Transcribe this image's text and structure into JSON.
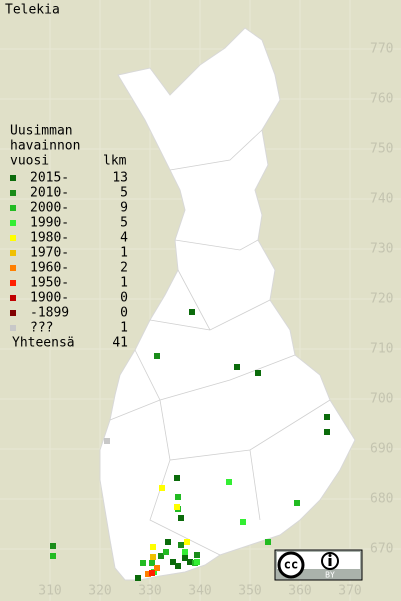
{
  "title": "Telekia",
  "legend": {
    "heading": [
      "Uusimman",
      "havainnon",
      "vuosi"
    ],
    "count_heading": "lkm",
    "items": [
      {
        "label": "2015-",
        "count": 13,
        "color": "#0b6b0b",
        "points": [
          [
            338.4,
            717.4
          ],
          [
            347.4,
            706.4
          ],
          [
            351.6,
            705.2
          ],
          [
            365.4,
            696.4
          ],
          [
            365.4,
            693.4
          ],
          [
            335.4,
            684.2
          ],
          [
            336.2,
            676.2
          ],
          [
            333.6,
            671.4
          ],
          [
            337,
            668.2
          ],
          [
            335.6,
            666.6
          ],
          [
            338,
            667.4
          ],
          [
            327.6,
            664.2
          ],
          [
            334.6,
            667.4
          ]
        ]
      },
      {
        "label": "2010-",
        "count": 5,
        "color": "#1a8c1a",
        "points": [
          [
            331.4,
            708.6
          ],
          [
            332.2,
            668.6
          ],
          [
            336.2,
            670.8
          ],
          [
            339.4,
            668.8
          ],
          [
            310.6,
            670.6
          ]
        ]
      },
      {
        "label": "2000-",
        "count": 9,
        "color": "#22bb22",
        "points": [
          [
            335.6,
            680.4
          ],
          [
            335.6,
            678
          ],
          [
            359.4,
            679.2
          ],
          [
            353.6,
            671.4
          ],
          [
            333.2,
            669.4
          ],
          [
            330.4,
            667.2
          ],
          [
            328.6,
            667.2
          ],
          [
            339,
            667.2
          ],
          [
            310.6,
            668.6
          ]
        ]
      },
      {
        "label": "1990-",
        "count": 5,
        "color": "#33ee33",
        "points": [
          [
            348.6,
            675.4
          ],
          [
            345.8,
            683.4
          ],
          [
            339.4,
            667.4
          ],
          [
            337,
            669.4
          ],
          [
            330.8,
            665.4
          ]
        ]
      },
      {
        "label": "1980-",
        "count": 4,
        "color": "#ffff00",
        "points": [
          [
            332.4,
            682.2
          ],
          [
            335.4,
            678.4
          ],
          [
            330.6,
            670.4
          ],
          [
            337.4,
            671.4
          ]
        ]
      },
      {
        "label": "1970-",
        "count": 1,
        "color": "#f0c000",
        "points": [
          [
            330.6,
            668.4
          ]
        ]
      },
      {
        "label": "1960-",
        "count": 2,
        "color": "#ff7f00",
        "points": [
          [
            331.4,
            666.2
          ],
          [
            329.6,
            665
          ]
        ]
      },
      {
        "label": "1950-",
        "count": 1,
        "color": "#ff2000",
        "points": [
          [
            330.4,
            665.2
          ]
        ]
      },
      {
        "label": "1900-",
        "count": 0,
        "color": "#c00000",
        "points": []
      },
      {
        "label": "-1899",
        "count": 0,
        "color": "#800000",
        "points": []
      },
      {
        "label": "???",
        "count": 1,
        "color": "#c8c8c8",
        "points": [
          [
            321.4,
            691.6
          ]
        ]
      }
    ],
    "total_label": "Yhteensä",
    "total": 41
  },
  "axes": {
    "xticks": [
      310,
      320,
      330,
      340,
      350,
      360,
      370
    ],
    "yticks": [
      670,
      680,
      690,
      700,
      710,
      720,
      730,
      740,
      750,
      760,
      770
    ]
  },
  "badge": {
    "icon": "cc",
    "label": "BY"
  }
}
